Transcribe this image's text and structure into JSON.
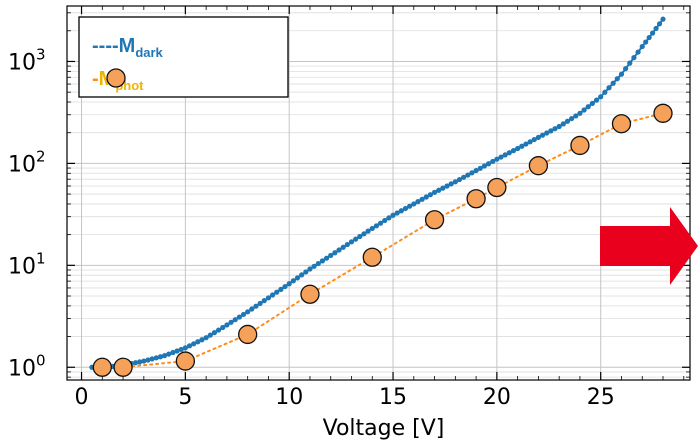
{
  "chart_data": {
    "type": "line",
    "xlabel": "Voltage [V]",
    "ylabel": "",
    "xlim": [
      -0.7,
      29.3
    ],
    "ylim": [
      0.75,
      3500
    ],
    "y_scale": "log",
    "grid": true,
    "legend_position": "top-left",
    "x_ticks": [
      0,
      5,
      10,
      15,
      20,
      25
    ],
    "y_ticks": [
      {
        "value": 1,
        "base": "10",
        "exp": "0"
      },
      {
        "value": 10,
        "base": "10",
        "exp": "1"
      },
      {
        "value": 100,
        "base": "10",
        "exp": "2"
      },
      {
        "value": 1000,
        "base": "10",
        "exp": "3"
      }
    ],
    "series": [
      {
        "name": "M",
        "subscript": "dark",
        "style": "dotted-dense",
        "color": "#1f77b4",
        "label_color": "#1f77b4",
        "legend_prefix": "----",
        "x": [
          0.5,
          1,
          1.5,
          2,
          3,
          4,
          5,
          6,
          7,
          8,
          9,
          10,
          11,
          12,
          13,
          14,
          15,
          16,
          17,
          18,
          19,
          20,
          21,
          22,
          23,
          24,
          25,
          26,
          27,
          27.5,
          28
        ],
        "y": [
          1.0,
          1.0,
          1.02,
          1.05,
          1.15,
          1.3,
          1.55,
          1.95,
          2.6,
          3.5,
          4.8,
          6.6,
          9.2,
          12.5,
          17,
          23,
          31,
          40,
          52,
          66,
          85,
          110,
          140,
          180,
          230,
          310,
          450,
          750,
          1400,
          1900,
          2600
        ]
      },
      {
        "name": "M",
        "subscript": "phot",
        "style": "markers-dotted",
        "color": "#ff8c1a",
        "marker_fill": "#f5a15a",
        "label_color": "#f0b400",
        "legend_prefix": "-",
        "x": [
          1,
          2,
          5,
          8,
          11,
          14,
          17,
          19,
          20,
          22,
          24,
          26,
          28
        ],
        "y": [
          1.0,
          1.0,
          1.15,
          2.1,
          5.2,
          12,
          28,
          45,
          58,
          95,
          150,
          245,
          310
        ]
      }
    ],
    "annotations": [
      {
        "kind": "arrow",
        "direction": "right",
        "color": "#e8001c"
      }
    ]
  }
}
